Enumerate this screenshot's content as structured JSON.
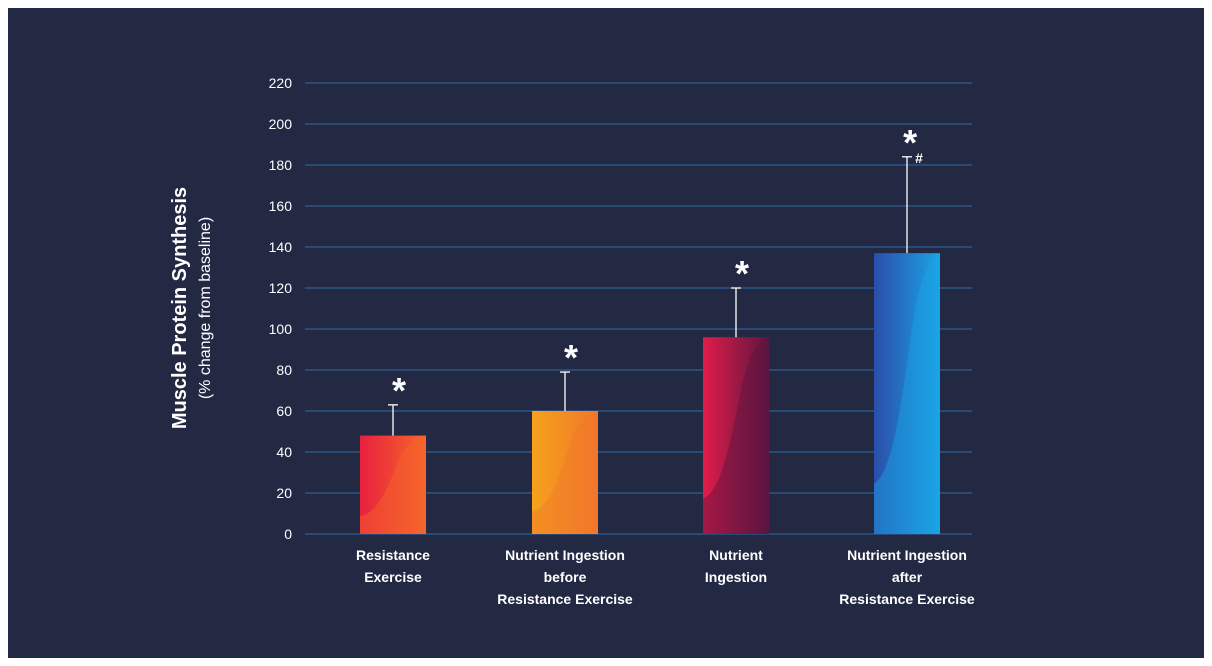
{
  "chart_data": {
    "type": "bar",
    "title": "",
    "ylabel": "Muscle Protein Synthesis",
    "ylabel_sub": "(% change from baseline)",
    "xlabel": "",
    "ylim": [
      0,
      220
    ],
    "yticks": [
      0,
      20,
      40,
      60,
      80,
      100,
      120,
      140,
      160,
      180,
      200,
      220
    ],
    "grid": true,
    "categories": [
      [
        "Resistance",
        "Exercise"
      ],
      [
        "Nutrient Ingestion",
        "before",
        "Resistance Exercise"
      ],
      [
        "Nutrient",
        "Ingestion"
      ],
      [
        "Nutrient Ingestion",
        "after",
        "Resistance Exercise"
      ]
    ],
    "values": [
      48,
      60,
      96,
      137
    ],
    "error_upper": [
      63,
      79,
      120,
      184
    ],
    "annotations": [
      "*",
      "*",
      "*",
      "*#"
    ],
    "colors": {
      "background": "#232843",
      "grid": "#2f6aa8",
      "bars": [
        [
          "#e8213f",
          "#f6652a"
        ],
        [
          "#f5a21c",
          "#f1772a"
        ],
        [
          "#e21c4a",
          "#5c1540"
        ],
        [
          "#2b4ea8",
          "#1aa4e6"
        ]
      ]
    }
  }
}
